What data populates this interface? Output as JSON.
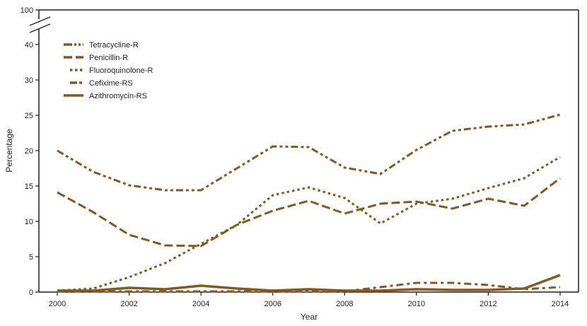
{
  "chart_data": {
    "type": "line",
    "title": "",
    "xlabel": "Year",
    "ylabel": "Percentage",
    "x": [
      2000,
      2001,
      2002,
      2003,
      2004,
      2005,
      2006,
      2007,
      2008,
      2009,
      2010,
      2011,
      2012,
      2013,
      2014
    ],
    "x_ticks": [
      2000,
      2002,
      2004,
      2006,
      2008,
      2010,
      2012,
      2014
    ],
    "y_ticks": [
      "0",
      "5",
      "10",
      "15",
      "20",
      "25",
      "30",
      "40",
      "100"
    ],
    "y_axis_break": true,
    "ylim": [
      0,
      100
    ],
    "grid": false,
    "legend_placement": "top-left",
    "color": "#84591f",
    "series": [
      {
        "name": "Tetracycline-R",
        "style": "dash-dot-dot",
        "values": [
          20.0,
          17.0,
          15.1,
          14.4,
          14.4,
          17.5,
          20.6,
          20.5,
          17.6,
          16.7,
          20.1,
          22.8,
          23.4,
          23.7,
          25.1
        ]
      },
      {
        "name": "Penicillin-R",
        "style": "dash",
        "values": [
          14.1,
          11.3,
          8.1,
          6.6,
          6.5,
          9.5,
          11.5,
          12.9,
          11.1,
          12.5,
          12.8,
          11.8,
          13.2,
          12.2,
          16.1
        ]
      },
      {
        "name": "Fluoroquinolone-R",
        "style": "dot",
        "values": [
          0.2,
          0.5,
          2.1,
          4.1,
          6.8,
          9.5,
          13.7,
          14.8,
          13.3,
          9.7,
          12.5,
          13.2,
          14.7,
          16.1,
          19.1
        ]
      },
      {
        "name": "Cefixime-RS",
        "style": "dash-dot",
        "values": [
          0.1,
          0.1,
          0.1,
          0.1,
          0.1,
          0.1,
          0.1,
          0.1,
          0.1,
          0.7,
          1.3,
          1.3,
          1.0,
          0.4,
          0.7
        ]
      },
      {
        "name": "Azithromycin-RS",
        "style": "solid",
        "values": [
          0.2,
          0.2,
          0.6,
          0.4,
          0.9,
          0.5,
          0.2,
          0.4,
          0.2,
          0.2,
          0.4,
          0.3,
          0.3,
          0.5,
          2.4
        ]
      }
    ]
  }
}
